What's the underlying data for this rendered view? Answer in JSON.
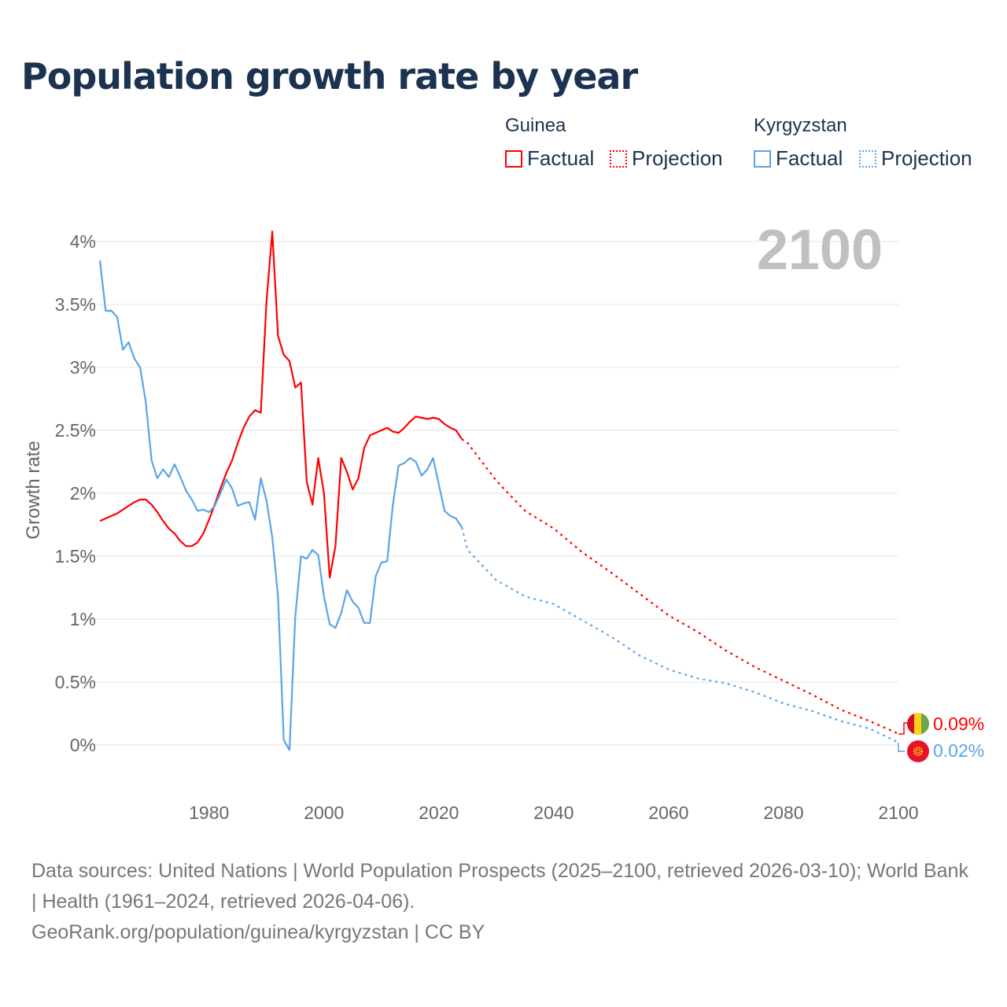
{
  "title": "Population growth rate by year",
  "legend": {
    "groups": [
      {
        "name": "Guinea",
        "color": "#ff0000",
        "factual": "Factual",
        "projection": "Projection"
      },
      {
        "name": "Kyrgyzstan",
        "color": "#5ba4e8",
        "factual": "Factual",
        "projection": "Projection"
      }
    ]
  },
  "year_label": "2100",
  "end_labels": {
    "guinea": "0.09%",
    "kyrgyzstan": "0.02%"
  },
  "source": {
    "line1": "Data sources: United Nations | World Population Prospects (2025–2100, retrieved 2026-03-10); World Bank | Health (1961–2024, retrieved 2026-04-06).",
    "line2": "GeoRank.org/population/guinea/kyrgyzstan | CC BY"
  },
  "chart_data": {
    "type": "line",
    "title": "Population growth rate by year",
    "xlabel": "",
    "ylabel": "Growth rate",
    "xlim": [
      1961,
      2100
    ],
    "ylim": [
      0,
      4
    ],
    "xticks": [
      1980,
      2000,
      2020,
      2040,
      2060,
      2080,
      2100
    ],
    "xtick_labels": [
      "1980",
      "2000",
      "2020",
      "2040",
      "2060",
      "2080",
      "2100"
    ],
    "yticks": [
      0,
      0.5,
      1,
      1.5,
      2,
      2.5,
      3,
      3.5,
      4
    ],
    "ytick_labels": [
      "0%",
      "0.5%",
      "1%",
      "1.5%",
      "2%",
      "2.5%",
      "3%",
      "3.5%",
      "4%"
    ],
    "grid": true,
    "legend_position": "top-right",
    "series": [
      {
        "name": "Guinea",
        "color": "#ff0000",
        "factual": {
          "start_year": 1961,
          "values": [
            1.78,
            1.8,
            1.82,
            1.84,
            1.87,
            1.9,
            1.93,
            1.95,
            1.95,
            1.91,
            1.85,
            1.78,
            1.72,
            1.68,
            1.62,
            1.58,
            1.58,
            1.61,
            1.68,
            1.79,
            1.91,
            2.04,
            2.16,
            2.26,
            2.4,
            2.52,
            2.61,
            2.66,
            2.64,
            3.53,
            4.08,
            3.25,
            3.1,
            3.05,
            2.84,
            2.88,
            2.09,
            1.91,
            2.28,
            2.0,
            1.33,
            1.58,
            2.28,
            2.17,
            2.03,
            2.12,
            2.36,
            2.46,
            2.48,
            2.5,
            2.52,
            2.49,
            2.48,
            2.52,
            2.57,
            2.61,
            2.6,
            2.59,
            2.6,
            2.59,
            2.55,
            2.52,
            2.5,
            2.43
          ]
        },
        "projection": {
          "years": [
            2024,
            2025,
            2030,
            2035,
            2040,
            2045,
            2050,
            2055,
            2060,
            2065,
            2070,
            2075,
            2080,
            2085,
            2090,
            2095,
            2100
          ],
          "values": [
            2.43,
            2.4,
            2.1,
            1.86,
            1.72,
            1.53,
            1.37,
            1.2,
            1.03,
            0.9,
            0.75,
            0.62,
            0.51,
            0.4,
            0.28,
            0.19,
            0.09
          ]
        }
      },
      {
        "name": "Kyrgyzstan",
        "color": "#5ba4e8",
        "factual": {
          "start_year": 1961,
          "values": [
            3.85,
            3.45,
            3.45,
            3.4,
            3.14,
            3.2,
            3.07,
            3.0,
            2.72,
            2.26,
            2.12,
            2.19,
            2.13,
            2.23,
            2.13,
            2.02,
            1.95,
            1.86,
            1.87,
            1.85,
            1.9,
            2.0,
            2.11,
            2.04,
            1.9,
            1.92,
            1.93,
            1.79,
            2.12,
            1.94,
            1.65,
            1.18,
            0.04,
            -0.04,
            1.02,
            1.5,
            1.48,
            1.55,
            1.51,
            1.18,
            0.96,
            0.93,
            1.05,
            1.23,
            1.14,
            1.09,
            0.97,
            0.97,
            1.34,
            1.45,
            1.46,
            1.91,
            2.22,
            2.24,
            2.28,
            2.25,
            2.14,
            2.19,
            2.28,
            2.07,
            1.86,
            1.82,
            1.8,
            1.73
          ]
        },
        "projection": {
          "years": [
            2024,
            2025,
            2030,
            2035,
            2040,
            2045,
            2050,
            2055,
            2060,
            2065,
            2070,
            2075,
            2080,
            2085,
            2090,
            2095,
            2100
          ],
          "values": [
            1.73,
            1.55,
            1.31,
            1.18,
            1.12,
            0.99,
            0.86,
            0.71,
            0.6,
            0.53,
            0.49,
            0.42,
            0.33,
            0.27,
            0.19,
            0.13,
            0.02
          ]
        }
      }
    ]
  }
}
